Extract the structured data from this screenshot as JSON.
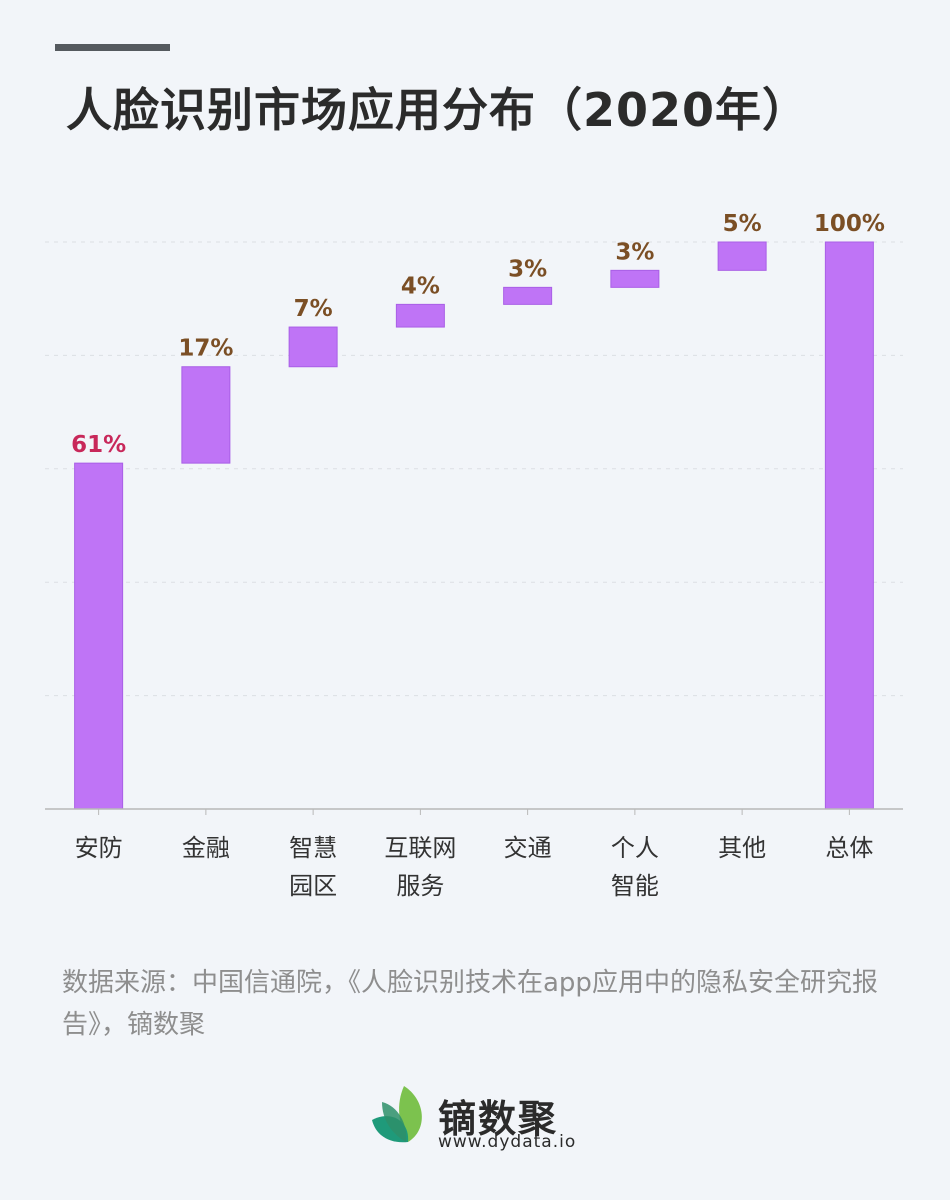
{
  "header": {
    "title": "人脸识别市场应用分布（2020年）"
  },
  "colors": {
    "bar": "#bf74f6",
    "bar_stroke": "#a95fe6",
    "first_label": "#c8285a",
    "other_label": "#7b4f25",
    "grid": "#dcdfe4",
    "axis": "#b8b8b8"
  },
  "chart_data": {
    "type": "bar",
    "subtype": "waterfall",
    "title": "人脸识别市场应用分布（2020年）",
    "categories": [
      "安防",
      "金融",
      "智慧园区",
      "互联网服务",
      "交通",
      "个人智能",
      "其他",
      "总体"
    ],
    "category_lines": [
      [
        "安防"
      ],
      [
        "金融"
      ],
      [
        "智慧",
        "园区"
      ],
      [
        "互联网",
        "服务"
      ],
      [
        "交通"
      ],
      [
        "个人",
        "智能"
      ],
      [
        "其他"
      ],
      [
        "总体"
      ]
    ],
    "values": [
      61,
      17,
      7,
      4,
      3,
      3,
      5,
      100
    ],
    "labels": [
      "61%",
      "17%",
      "7%",
      "4%",
      "3%",
      "3%",
      "5%",
      "100%"
    ],
    "total_index": 7,
    "ylim": [
      0,
      100
    ],
    "grid": true,
    "legend": "none"
  },
  "footer": {
    "source": "数据来源：中国信通院，《人脸识别技术在app应用中的隐私安全研究报告》，镝数聚",
    "logo_name": "镝数聚",
    "logo_url": "www.dydata.io"
  }
}
